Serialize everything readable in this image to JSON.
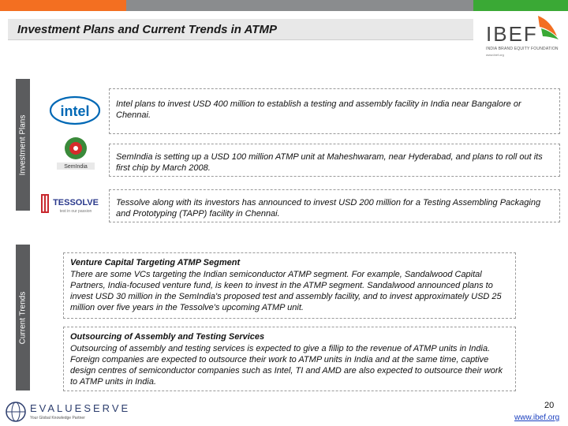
{
  "colors": {
    "orange": "#f36f21",
    "gray": "#8a8c8e",
    "green": "#3aa935",
    "side_band": "#5b5c5e",
    "intel_blue": "#0068b5",
    "link": "#1a3fbf"
  },
  "header": {
    "title": "Investment Plans and Current Trends in ATMP"
  },
  "ibef": {
    "name": "IBEF",
    "subtitle": "INDIA BRAND EQUITY FOUNDATION",
    "url": "www.ibef.org"
  },
  "side_labels": {
    "plans": "Investment Plans",
    "trends": "Current Trends"
  },
  "logos": {
    "intel": "intel",
    "semindia": "SemIndia",
    "tessolve": "TESSOLVE",
    "tessolve_tag": "test in our passion"
  },
  "plans": [
    {
      "text": "Intel plans to invest USD 400 million to establish a testing and assembly facility in India near Bangalore or Chennai."
    },
    {
      "text": "SemIndia is setting up a USD 100 million ATMP unit at Maheshwaram, near Hyderabad, and plans to roll out its first chip by March 2008."
    },
    {
      "text": "Tessolve along with its investors has announced to invest USD 200 million for a Testing Assembling Packaging and Prototyping (TAPP) facility in Chennai."
    }
  ],
  "trends": [
    {
      "title": "Venture Capital Targeting ATMP Segment",
      "body": "There are some VCs targeting the Indian semiconductor ATMP segment. For example, Sandalwood Capital Partners, India-focused venture fund, is keen to invest in the ATMP segment. Sandalwood announced plans to invest USD 30 million in the SemIndia's proposed test and assembly facility, and to invest approximately USD 25 million over five years in the Tessolve's upcoming ATMP unit."
    },
    {
      "title": "Outsourcing of Assembly and Testing Services",
      "body": "Outsourcing of assembly and testing services is expected to give a fillip to the revenue of ATMP units in India. Foreign companies are expected to outsource their work to ATMP units in India and at the same time, captive design centres of semiconductor companies such as Intel, TI and AMD are also expected to outsource their work to ATMP units in India."
    }
  ],
  "footer": {
    "brand": "EVALUESERVE",
    "tagline": "Your Global Knowledge Partner",
    "page_number": "20",
    "site": "www.ibef.org"
  }
}
